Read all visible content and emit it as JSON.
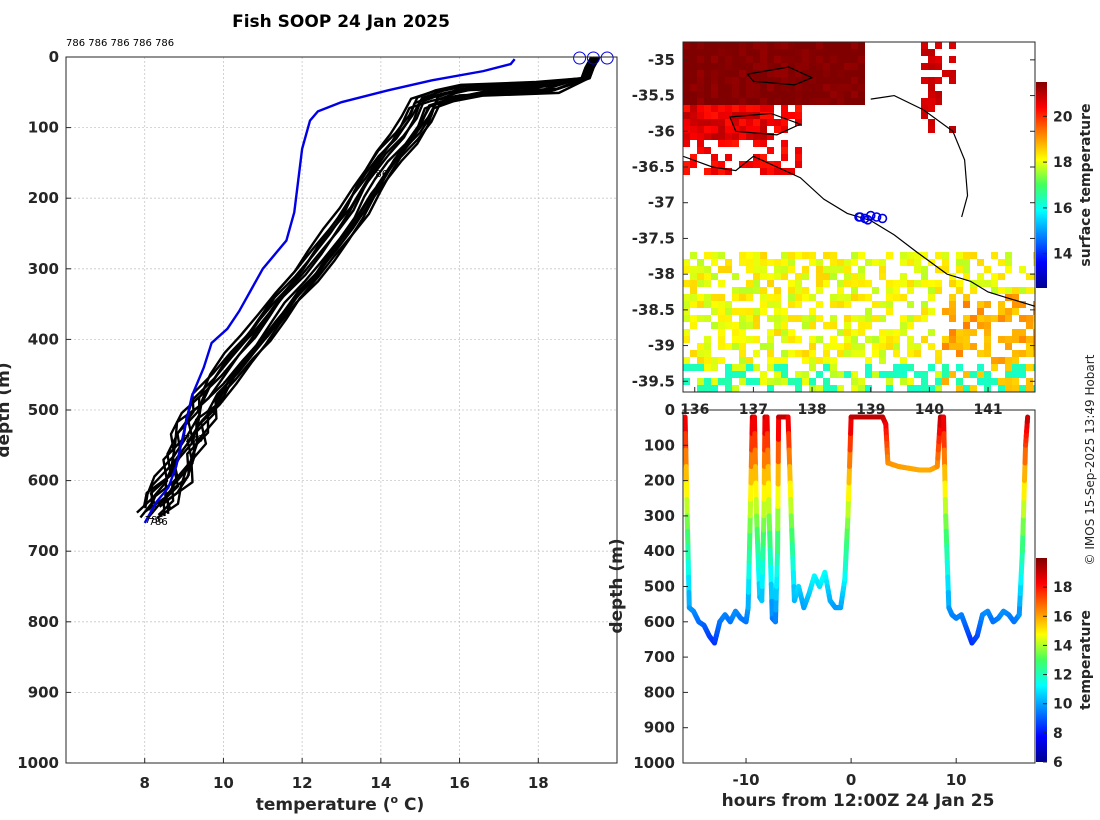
{
  "title": "Fish SOOP 24 Jan 2025",
  "credit": "© IMOS 15-Sep-2025 13:49 Hobart",
  "colors": {
    "profile": "#000000",
    "ref_profile": "#0000e6",
    "coast": "#000000"
  },
  "chart_data": [
    {
      "id": "profiles",
      "type": "line",
      "xlabel": "temperature (o C)",
      "xlabel_text": "temperature (",
      "xlabel_sup": "o",
      "xlabel_tail": " C)",
      "ylabel": "depth (m)",
      "xlim": [
        6,
        20
      ],
      "ylim": [
        0,
        1000
      ],
      "xticks": [
        8,
        10,
        12,
        14,
        16,
        18
      ],
      "yticks": [
        0,
        100,
        200,
        300,
        400,
        500,
        600,
        700,
        800,
        900,
        1000
      ],
      "top_labels": [
        "786",
        "786",
        "786",
        "786",
        "786"
      ],
      "annotations": [
        {
          "text": "786",
          "x": 13.7,
          "y": 170
        },
        {
          "text": "786",
          "x": 9.0,
          "y": 545
        },
        {
          "text": "786",
          "x": 8.0,
          "y": 660
        },
        {
          "text": "786",
          "x": 8.1,
          "y": 663
        }
      ],
      "surface_markers": [
        {
          "x": 19.05,
          "y": 0
        },
        {
          "x": 19.4,
          "y": 0
        },
        {
          "x": 19.75,
          "y": 0
        }
      ],
      "reference_series": {
        "name": "reference",
        "points": [
          [
            17.4,
            3
          ],
          [
            17.3,
            10
          ],
          [
            16.6,
            20
          ],
          [
            15.3,
            33
          ],
          [
            14.2,
            47
          ],
          [
            13.0,
            64
          ],
          [
            12.4,
            77
          ],
          [
            12.2,
            90
          ],
          [
            12.0,
            130
          ],
          [
            11.9,
            175
          ],
          [
            11.8,
            220
          ],
          [
            11.6,
            260
          ],
          [
            11.3,
            280
          ],
          [
            11.0,
            300
          ],
          [
            10.7,
            330
          ],
          [
            10.4,
            360
          ],
          [
            10.1,
            385
          ],
          [
            9.7,
            405
          ],
          [
            9.5,
            440
          ],
          [
            9.2,
            480
          ],
          [
            9.0,
            530
          ],
          [
            8.8,
            580
          ],
          [
            8.6,
            610
          ],
          [
            8.3,
            630
          ],
          [
            8.0,
            660
          ]
        ]
      },
      "series_base": [
        [
          19.45,
          0
        ],
        [
          19.3,
          15
        ],
        [
          19.2,
          30
        ],
        [
          18.2,
          43
        ],
        [
          16.3,
          47
        ],
        [
          15.6,
          55
        ],
        [
          15.1,
          65
        ],
        [
          14.9,
          90
        ],
        [
          14.6,
          115
        ],
        [
          14.2,
          140
        ],
        [
          13.9,
          165
        ],
        [
          13.6,
          190
        ],
        [
          13.3,
          220
        ],
        [
          12.9,
          250
        ],
        [
          12.5,
          280
        ],
        [
          12.1,
          310
        ],
        [
          11.6,
          340
        ],
        [
          11.2,
          370
        ],
        [
          10.8,
          400
        ],
        [
          10.4,
          425
        ],
        [
          10.0,
          455
        ],
        [
          9.6,
          485
        ],
        [
          9.3,
          510
        ],
        [
          9.1,
          540
        ],
        [
          8.9,
          570
        ],
        [
          8.7,
          600
        ],
        [
          8.4,
          625
        ],
        [
          8.2,
          645
        ]
      ],
      "series_count": 14
    },
    {
      "id": "sst_map",
      "type": "heatmap",
      "title": "surface temperature",
      "cbar_label": "surface temperature",
      "xlim": [
        135.8,
        141.8
      ],
      "ylim": [
        -39.65,
        -34.75
      ],
      "xticks": [
        "136",
        "137",
        "138",
        "139",
        "140",
        "141"
      ],
      "yticks": [
        "-35",
        "-35.5",
        "-36",
        "-36.5",
        "-37",
        "-37.5",
        "-38",
        "-38.5",
        "-39",
        "-39.5"
      ],
      "clim": [
        12.5,
        21.5
      ],
      "cbar_ticks": [
        "14",
        "16",
        "18",
        "20"
      ],
      "track": {
        "lon": [
          138.82,
          138.9,
          139.0,
          139.1,
          139.2,
          138.95,
          138.8
        ],
        "lat": [
          -37.2,
          -37.22,
          -37.18,
          -37.2,
          -37.22,
          -37.24,
          -37.2
        ]
      }
    },
    {
      "id": "depth_time",
      "type": "scatter",
      "xlabel": "hours from 12:00Z 24 Jan 25",
      "ylabel": "depth (m)",
      "cbar_label": "temperature",
      "xlim": [
        -16,
        17.5
      ],
      "ylim": [
        0,
        1000
      ],
      "xticks": [
        "-10",
        "0",
        "10"
      ],
      "xtick_values": [
        -10,
        0,
        10
      ],
      "yticks": [
        "0",
        "100",
        "200",
        "300",
        "400",
        "500",
        "600",
        "700",
        "800",
        "900",
        "1000"
      ],
      "clim": [
        6,
        20
      ],
      "cbar_ticks": [
        "6",
        "8",
        "10",
        "12",
        "14",
        "16",
        "18"
      ],
      "path": [
        [
          -15.8,
          20
        ],
        [
          -15.6,
          300
        ],
        [
          -15.4,
          560
        ],
        [
          -15,
          570
        ],
        [
          -14.5,
          600
        ],
        [
          -14,
          610
        ],
        [
          -13.5,
          640
        ],
        [
          -13,
          660
        ],
        [
          -12.5,
          600
        ],
        [
          -12,
          580
        ],
        [
          -11.5,
          600
        ],
        [
          -11,
          570
        ],
        [
          -10.5,
          590
        ],
        [
          -10,
          600
        ],
        [
          -9.8,
          560
        ],
        [
          -9.6,
          300
        ],
        [
          -9.4,
          20
        ],
        [
          -9.2,
          20
        ],
        [
          -9.0,
          300
        ],
        [
          -8.7,
          530
        ],
        [
          -8.5,
          540
        ],
        [
          -8.3,
          300
        ],
        [
          -8.2,
          20
        ],
        [
          -8.0,
          20
        ],
        [
          -7.8,
          300
        ],
        [
          -7.5,
          590
        ],
        [
          -7.2,
          600
        ],
        [
          -7.0,
          400
        ],
        [
          -6.9,
          20
        ],
        [
          -6.6,
          20
        ],
        [
          -6.3,
          20
        ],
        [
          -6.0,
          20
        ],
        [
          -5.7,
          300
        ],
        [
          -5.4,
          540
        ],
        [
          -5.0,
          500
        ],
        [
          -4.5,
          560
        ],
        [
          -4,
          520
        ],
        [
          -3.5,
          470
        ],
        [
          -3,
          500
        ],
        [
          -2.5,
          460
        ],
        [
          -2,
          540
        ],
        [
          -1.5,
          560
        ],
        [
          -1,
          560
        ],
        [
          -0.6,
          480
        ],
        [
          -0.3,
          300
        ],
        [
          0,
          20
        ],
        [
          0.5,
          20
        ],
        [
          1,
          20
        ],
        [
          1.5,
          20
        ],
        [
          2,
          20
        ],
        [
          2.5,
          20
        ],
        [
          3.0,
          20
        ],
        [
          3.3,
          40
        ],
        [
          3.5,
          150
        ],
        [
          4.5,
          160
        ],
        [
          5.5,
          165
        ],
        [
          6.5,
          170
        ],
        [
          7.5,
          170
        ],
        [
          8.2,
          160
        ],
        [
          8.5,
          20
        ],
        [
          8.8,
          20
        ],
        [
          9.0,
          300
        ],
        [
          9.3,
          560
        ],
        [
          9.6,
          580
        ],
        [
          10,
          590
        ],
        [
          10.5,
          580
        ],
        [
          11,
          620
        ],
        [
          11.5,
          660
        ],
        [
          12,
          640
        ],
        [
          12.5,
          580
        ],
        [
          13,
          570
        ],
        [
          13.5,
          600
        ],
        [
          14,
          590
        ],
        [
          14.5,
          570
        ],
        [
          15,
          580
        ],
        [
          15.5,
          600
        ],
        [
          16,
          580
        ],
        [
          16.3,
          400
        ],
        [
          16.6,
          100
        ],
        [
          16.8,
          20
        ]
      ]
    }
  ]
}
